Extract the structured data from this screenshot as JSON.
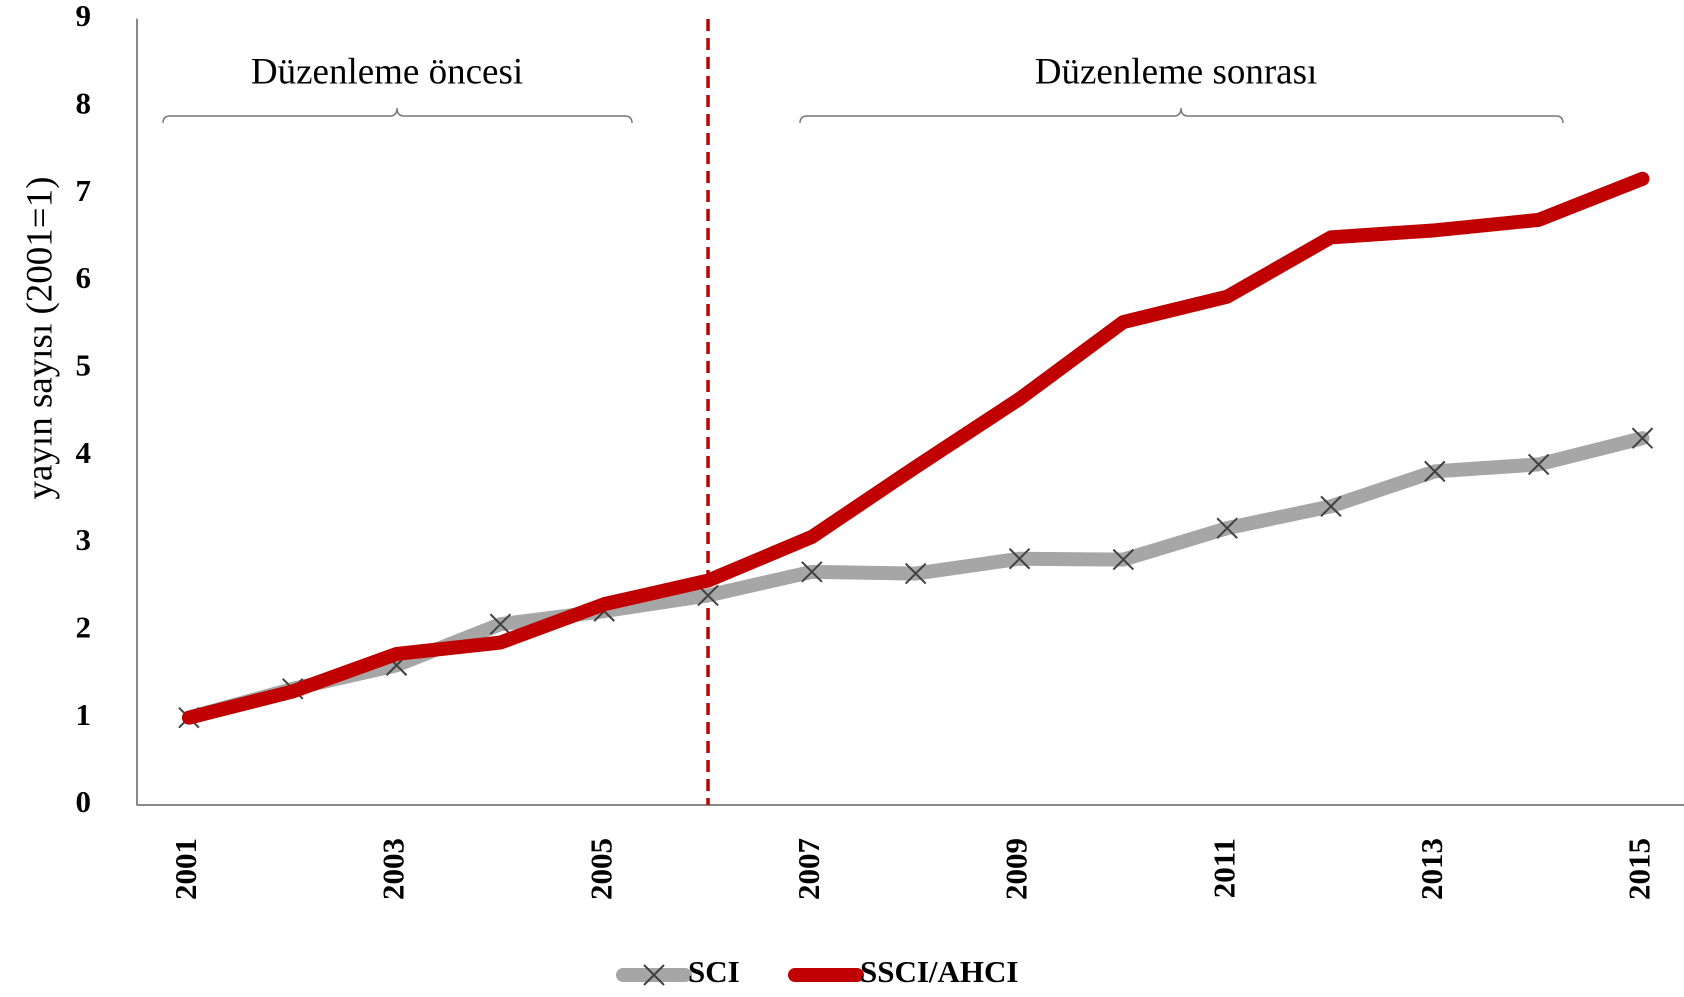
{
  "chart_data": {
    "type": "line",
    "y_label": "yayın sayısı (2001=1)",
    "annotations": [
      "Düzenleme öncesi",
      "Düzenleme sonrası"
    ],
    "x": [
      2001,
      2002,
      2003,
      2004,
      2005,
      2006,
      2007,
      2008,
      2009,
      2010,
      2011,
      2012,
      2013,
      2014,
      2015
    ],
    "xlim": [
      2000.5,
      2015.4
    ],
    "xticks": [
      2001,
      2003,
      2005,
      2007,
      2009,
      2011,
      2013,
      2015
    ],
    "ylim": [
      0,
      9
    ],
    "yticks": [
      0,
      1,
      2,
      3,
      4,
      5,
      6,
      7,
      8,
      9
    ],
    "grid": false,
    "vline": {
      "x": 2006,
      "color": "#c00000"
    },
    "legend": "bottom",
    "series": [
      {
        "name": "SCI",
        "color": "#a6a6a6",
        "marker": "x",
        "values": [
          1,
          1.33,
          1.6,
          2.07,
          2.22,
          2.4,
          2.67,
          2.65,
          2.82,
          2.81,
          3.17,
          3.42,
          3.82,
          3.9,
          4.2
        ]
      },
      {
        "name": "SSCI/AHCI",
        "color": "#c00000",
        "values": [
          1,
          1.3,
          1.73,
          1.86,
          2.3,
          2.57,
          3.07,
          3.87,
          4.65,
          5.53,
          5.82,
          6.5,
          6.58,
          6.7,
          7.17
        ]
      }
    ]
  }
}
